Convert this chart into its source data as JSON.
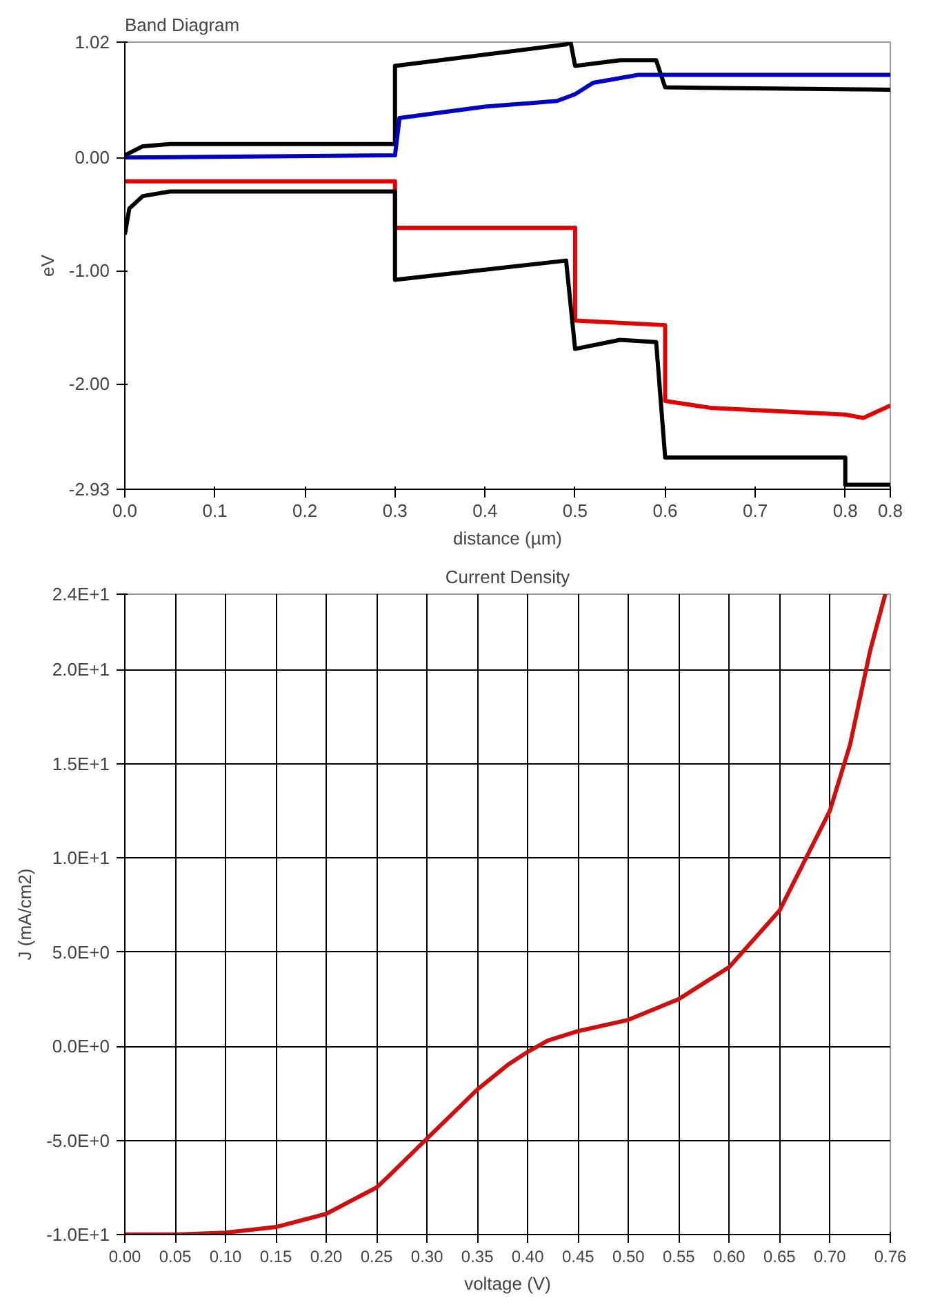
{
  "chart_data": [
    {
      "type": "line",
      "title": "Band Diagram",
      "xlabel": "distance (µm)",
      "ylabel": "eV",
      "xlim": [
        0,
        0.85
      ],
      "ylim": [
        -2.93,
        1.02
      ],
      "xticks": [
        {
          "value": 0,
          "label": "0.0"
        },
        0.1,
        0.2,
        0.3,
        0.4,
        0.5,
        0.6,
        0.7,
        0.8,
        {
          "value": 0.85,
          "label": "0.8"
        }
      ],
      "yticks": [
        1.02,
        {
          "value": 0,
          "label": "0.00"
        },
        {
          "value": -1,
          "label": "-1.00"
        },
        {
          "value": -2,
          "label": "-2.00"
        },
        {
          "value": -2.93,
          "label": "-2.93"
        }
      ],
      "grid": false,
      "marker": "none",
      "line_style": "solid",
      "series": [
        {
          "color": "#000000",
          "x": [
            0,
            0.02,
            0.05,
            0.3,
            0.3,
            0.49,
            0.495,
            0.5,
            0.55,
            0.59,
            0.6,
            0.85
          ],
          "values": [
            0.02,
            0.1,
            0.12,
            0.12,
            0.81,
            1.0,
            1.02,
            0.81,
            0.86,
            0.86,
            0.62,
            0.6
          ]
        },
        {
          "color": "#0000c0",
          "x": [
            0,
            0.3,
            0.305,
            0.4,
            0.48,
            0.5,
            0.52,
            0.57,
            0.85
          ],
          "values": [
            0,
            0.02,
            0.35,
            0.45,
            0.5,
            0.56,
            0.66,
            0.73,
            0.73
          ]
        },
        {
          "color": "#e00000",
          "x": [
            0,
            0.3,
            0.3,
            0.5,
            0.5,
            0.6,
            0.6,
            0.65,
            0.8,
            0.82,
            0.85
          ],
          "values": [
            -0.21,
            -0.21,
            -0.62,
            -0.62,
            -1.44,
            -1.48,
            -2.15,
            -2.21,
            -2.27,
            -2.3,
            -2.19
          ]
        },
        {
          "color": "#000000",
          "x": [
            0,
            0.005,
            0.02,
            0.05,
            0.3,
            0.3,
            0.49,
            0.5,
            0.55,
            0.59,
            0.6,
            0.8,
            0.8,
            0.85
          ],
          "values": [
            -0.68,
            -0.45,
            -0.34,
            -0.3,
            -0.3,
            -1.08,
            -0.91,
            -1.69,
            -1.61,
            -1.63,
            -2.65,
            -2.65,
            -2.89,
            -2.89
          ]
        }
      ]
    },
    {
      "type": "line",
      "title": "Current Density",
      "xlabel": "voltage (V)",
      "ylabel": "J (mA/cm2)",
      "xlim": [
        0,
        0.76
      ],
      "ylim": [
        -10,
        24
      ],
      "xticks": [
        {
          "value": 0,
          "label": "0.00"
        },
        {
          "value": 0.05,
          "label": "0.05"
        },
        {
          "value": 0.1,
          "label": "0.10"
        },
        {
          "value": 0.15,
          "label": "0.15"
        },
        {
          "value": 0.2,
          "label": "0.20"
        },
        {
          "value": 0.25,
          "label": "0.25"
        },
        {
          "value": 0.3,
          "label": "0.30"
        },
        {
          "value": 0.35,
          "label": "0.35"
        },
        {
          "value": 0.4,
          "label": "0.40"
        },
        {
          "value": 0.45,
          "label": "0.45"
        },
        {
          "value": 0.5,
          "label": "0.50"
        },
        {
          "value": 0.55,
          "label": "0.55"
        },
        {
          "value": 0.6,
          "label": "0.60"
        },
        {
          "value": 0.65,
          "label": "0.65"
        },
        {
          "value": 0.7,
          "label": "0.70"
        },
        0.76
      ],
      "yticks": [
        {
          "value": 24,
          "label": "2.4E+1"
        },
        {
          "value": 20,
          "label": "2.0E+1"
        },
        {
          "value": 15,
          "label": "1.5E+1"
        },
        {
          "value": 10,
          "label": "1.0E+1"
        },
        {
          "value": 5,
          "label": "5.0E+0"
        },
        {
          "value": 0,
          "label": "0.0E+0"
        },
        {
          "value": -5,
          "label": "-5.0E+0"
        },
        {
          "value": -10,
          "label": "-1.0E+1"
        }
      ],
      "grid": true,
      "marker": "none",
      "line_style": "solid",
      "series": [
        {
          "color": "#cc1010",
          "x": [
            0,
            0.05,
            0.1,
            0.15,
            0.2,
            0.25,
            0.26,
            0.3,
            0.35,
            0.38,
            0.4,
            0.42,
            0.45,
            0.5,
            0.55,
            0.6,
            0.65,
            0.7,
            0.72,
            0.74,
            0.755
          ],
          "values": [
            -10,
            -10,
            -9.9,
            -9.6,
            -8.9,
            -7.5,
            -7,
            -4.9,
            -2.3,
            -1,
            -0.3,
            0.3,
            0.8,
            1.4,
            2.5,
            4.2,
            7.2,
            12.5,
            16,
            21,
            24
          ]
        }
      ]
    }
  ]
}
